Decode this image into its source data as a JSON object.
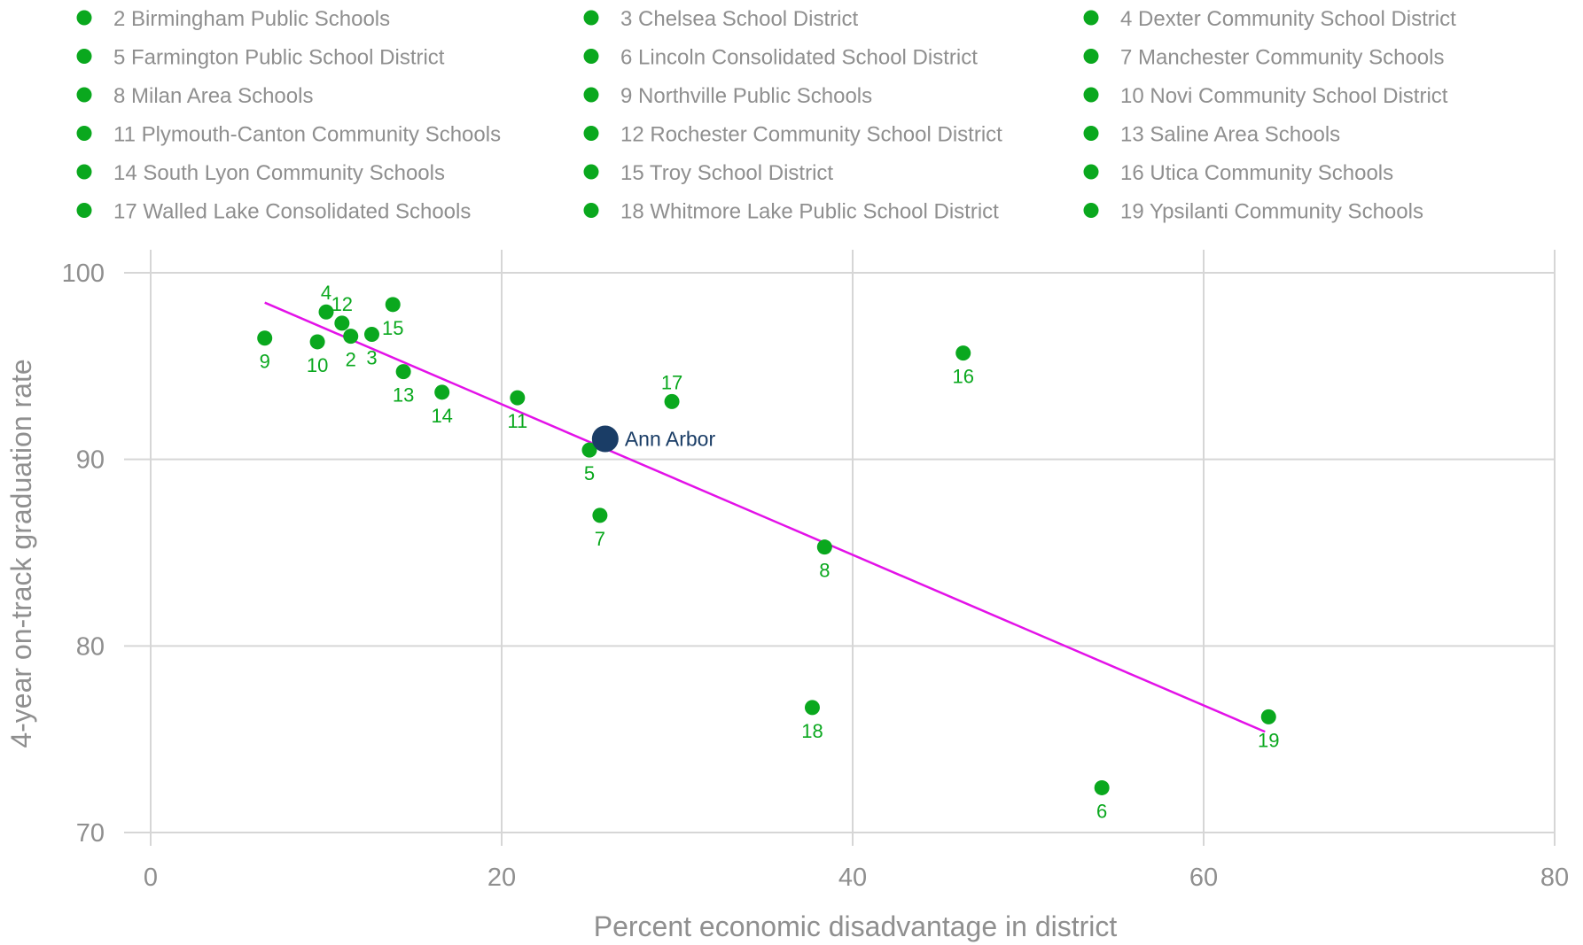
{
  "chart_data": {
    "type": "scatter",
    "title": "",
    "xlabel": "Percent economic disadvantage in district",
    "ylabel": "4-year on-track graduation rate",
    "xlim": [
      0,
      80
    ],
    "ylim": [
      70,
      100
    ],
    "x_ticks": [
      "0",
      "20",
      "40",
      "60",
      "80"
    ],
    "y_ticks": [
      "70",
      "80",
      "90",
      "100"
    ],
    "grid": true,
    "legend_position": "top",
    "colors": {
      "points": "#0aa81e",
      "highlight": "#1a3d66",
      "trend": "#e312e8",
      "grid": "#d6d6d6",
      "text": "#8f8f8f"
    },
    "legend": [
      {
        "num": "2",
        "name": "2 Birmingham Public Schools"
      },
      {
        "num": "3",
        "name": "3 Chelsea School District"
      },
      {
        "num": "4",
        "name": "4 Dexter Community School District"
      },
      {
        "num": "5",
        "name": "5 Farmington Public School District"
      },
      {
        "num": "6",
        "name": "6 Lincoln Consolidated School District"
      },
      {
        "num": "7",
        "name": "7 Manchester Community Schools"
      },
      {
        "num": "8",
        "name": "8 Milan Area Schools"
      },
      {
        "num": "9",
        "name": "9 Northville Public Schools"
      },
      {
        "num": "10",
        "name": "10 Novi Community School District"
      },
      {
        "num": "11",
        "name": "11 Plymouth-Canton Community Schools"
      },
      {
        "num": "12",
        "name": "12 Rochester Community School District"
      },
      {
        "num": "13",
        "name": "13 Saline Area Schools"
      },
      {
        "num": "14",
        "name": "14 South Lyon Community Schools"
      },
      {
        "num": "15",
        "name": "15 Troy School District"
      },
      {
        "num": "16",
        "name": "16 Utica Community Schools"
      },
      {
        "num": "17",
        "name": "17 Walled Lake Consolidated Schools"
      },
      {
        "num": "18",
        "name": "18 Whitmore Lake Public School District"
      },
      {
        "num": "19",
        "name": "19 Ypsilanti Community Schools"
      }
    ],
    "points": [
      {
        "label": "2",
        "x": 11.4,
        "y": 96.6,
        "label_pos": "below"
      },
      {
        "label": "3",
        "x": 12.6,
        "y": 96.7,
        "label_pos": "below"
      },
      {
        "label": "4",
        "x": 10.0,
        "y": 97.9,
        "label_pos": "above"
      },
      {
        "label": "5",
        "x": 25.0,
        "y": 90.5,
        "label_pos": "below"
      },
      {
        "label": "6",
        "x": 54.2,
        "y": 72.4,
        "label_pos": "below"
      },
      {
        "label": "7",
        "x": 25.6,
        "y": 87.0,
        "label_pos": "below"
      },
      {
        "label": "8",
        "x": 38.4,
        "y": 85.3,
        "label_pos": "below"
      },
      {
        "label": "9",
        "x": 6.5,
        "y": 96.5,
        "label_pos": "below"
      },
      {
        "label": "10",
        "x": 9.5,
        "y": 96.3,
        "label_pos": "below"
      },
      {
        "label": "11",
        "x": 20.9,
        "y": 93.3,
        "label_pos": "below"
      },
      {
        "label": "12",
        "x": 10.9,
        "y": 97.3,
        "label_pos": "above"
      },
      {
        "label": "13",
        "x": 14.4,
        "y": 94.7,
        "label_pos": "below"
      },
      {
        "label": "14",
        "x": 16.6,
        "y": 93.6,
        "label_pos": "below"
      },
      {
        "label": "15",
        "x": 13.8,
        "y": 98.3,
        "label_pos": "below"
      },
      {
        "label": "16",
        "x": 46.3,
        "y": 95.7,
        "label_pos": "below"
      },
      {
        "label": "17",
        "x": 29.7,
        "y": 93.1,
        "label_pos": "above"
      },
      {
        "label": "18",
        "x": 37.7,
        "y": 76.7,
        "label_pos": "below"
      },
      {
        "label": "19",
        "x": 63.7,
        "y": 76.2,
        "label_pos": "below"
      }
    ],
    "highlight": {
      "label": "Ann Arbor",
      "x": 25.9,
      "y": 91.1
    },
    "trendline": {
      "x": [
        6.5,
        63.5
      ],
      "y": [
        98.4,
        75.4
      ]
    }
  }
}
